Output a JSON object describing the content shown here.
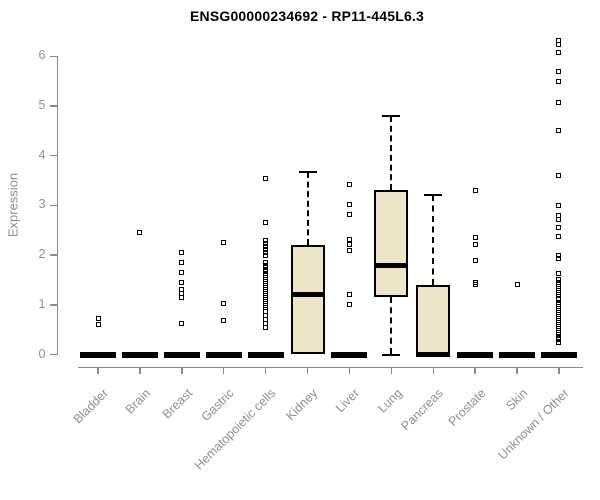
{
  "chart_data": {
    "type": "boxplot",
    "title": "ENSG00000234692 - RP11-445L6.3",
    "ylabel": "Expression",
    "yticks": [
      0,
      1,
      2,
      3,
      4,
      5,
      6
    ],
    "ylim": [
      0,
      6.45
    ],
    "grid": false,
    "categories": [
      "Bladder",
      "Brain",
      "Breast",
      "Gastric",
      "Hematopoietic cells",
      "Kidney",
      "Liver",
      "Lung",
      "Pancreas",
      "Prostate",
      "Skin",
      "Unknown / Other"
    ],
    "boxes": [
      {
        "category": "Bladder",
        "q1": 0,
        "median": 0,
        "q3": 0,
        "whisker_low": 0,
        "whisker_high": 0,
        "outliers": [
          0.72,
          0.6
        ]
      },
      {
        "category": "Brain",
        "q1": 0,
        "median": 0,
        "q3": 0,
        "whisker_low": 0,
        "whisker_high": 0,
        "outliers": [
          2.45
        ]
      },
      {
        "category": "Breast",
        "q1": 0,
        "median": 0,
        "q3": 0,
        "whisker_low": 0,
        "whisker_high": 0,
        "outliers": [
          2.05,
          1.85,
          1.65,
          1.45,
          1.3,
          1.22,
          1.15,
          0.62
        ]
      },
      {
        "category": "Gastric",
        "q1": 0,
        "median": 0,
        "q3": 0,
        "whisker_low": 0,
        "whisker_high": 0,
        "outliers": [
          2.25,
          1.02,
          0.68
        ]
      },
      {
        "category": "Hematopoietic cells",
        "q1": 0,
        "median": 0,
        "q3": 0,
        "whisker_low": 0,
        "whisker_high": 0,
        "outliers": [
          3.55,
          2.65,
          2.3,
          2.24,
          2.18,
          2.12,
          2.06,
          2.0,
          1.85,
          1.8,
          1.75,
          1.7,
          1.66,
          1.62,
          1.58,
          1.54,
          1.5,
          1.46,
          1.42,
          1.38,
          1.34,
          1.3,
          1.26,
          1.22,
          1.18,
          1.14,
          1.1,
          1.06,
          1.02,
          0.98,
          0.95,
          0.86,
          0.78,
          0.7,
          0.62,
          0.55
        ]
      },
      {
        "category": "Kidney",
        "q1": 0,
        "median": 1.2,
        "q3": 2.2,
        "whisker_low": 0,
        "whisker_high": 3.67,
        "outliers": []
      },
      {
        "category": "Liver",
        "q1": 0,
        "median": 0,
        "q3": 0,
        "whisker_low": 0,
        "whisker_high": 0,
        "outliers": [
          3.42,
          3.02,
          2.82,
          2.32,
          2.22,
          2.1,
          1.2,
          1.0
        ]
      },
      {
        "category": "Lung",
        "q1": 1.15,
        "median": 1.8,
        "q3": 3.3,
        "whisker_low": 0,
        "whisker_high": 4.8,
        "outliers": []
      },
      {
        "category": "Pancreas",
        "q1": 0,
        "median": 0,
        "q3": 1.4,
        "whisker_low": 0,
        "whisker_high": 3.2,
        "outliers": []
      },
      {
        "category": "Prostate",
        "q1": 0,
        "median": 0,
        "q3": 0,
        "whisker_low": 0,
        "whisker_high": 0,
        "outliers": [
          3.3,
          2.35,
          2.22,
          1.9,
          1.45,
          1.4
        ]
      },
      {
        "category": "Skin",
        "q1": 0,
        "median": 0,
        "q3": 0,
        "whisker_low": 0,
        "whisker_high": 0,
        "outliers": [
          1.4
        ]
      },
      {
        "category": "Unknown / Other",
        "q1": 0,
        "median": 0,
        "q3": 0,
        "whisker_low": 0,
        "whisker_high": 0,
        "outliers": [
          6.32,
          6.24,
          6.08,
          5.7,
          5.5,
          5.08,
          4.5,
          3.6,
          3.0,
          2.8,
          2.72,
          2.55,
          2.38,
          2.0,
          1.94,
          1.62,
          1.5,
          1.45,
          1.4,
          1.36,
          1.32,
          1.28,
          1.24,
          1.2,
          1.1,
          1.05,
          1.0,
          0.96,
          0.92,
          0.88,
          0.84,
          0.8,
          0.76,
          0.72,
          0.68,
          0.64,
          0.6,
          0.56,
          0.52,
          0.48,
          0.44,
          0.4,
          0.35,
          0.3,
          0.25
        ]
      }
    ],
    "colors": {
      "box_fill": "#EDE5C8",
      "box_border": "#000000",
      "median": "#000000",
      "axis": "#8A8A8A",
      "tick_label": "#8F8F8F",
      "title": "#000000",
      "background": "#FFFFFF"
    },
    "legend": null
  }
}
